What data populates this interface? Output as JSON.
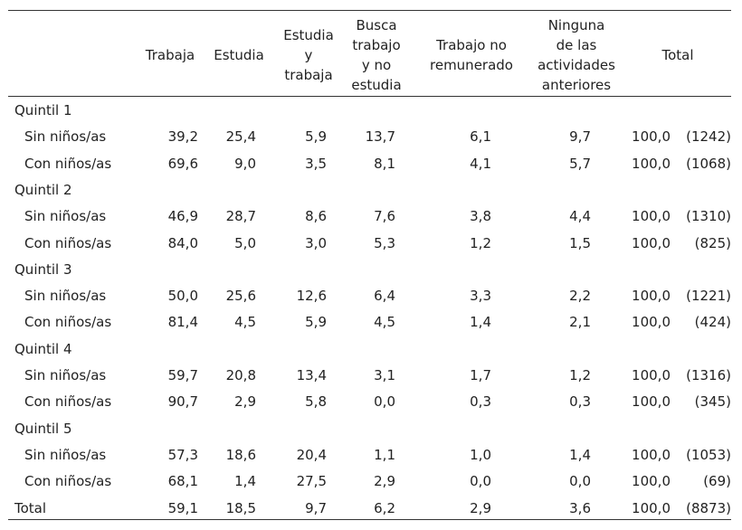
{
  "headers": [
    "Trabaja",
    "Estudia",
    "Estudia\ny\ntrabaja",
    "Busca\ntrabajo\ny no\nestudia",
    "Trabajo no\nremunerado",
    "Ninguna\nde las\nactividades\nanteriores",
    "Total"
  ],
  "groups": [
    {
      "label": "Quintil 1",
      "rows": [
        {
          "label": "Sin niños/as",
          "values": [
            "39,2",
            "25,4",
            "5,9",
            "13,7",
            "6,1",
            "9,7",
            "100,0"
          ],
          "n": "(1242)"
        },
        {
          "label": "Con niños/as",
          "values": [
            "69,6",
            "9,0",
            "3,5",
            "8,1",
            "4,1",
            "5,7",
            "100,0"
          ],
          "n": "(1068)"
        }
      ]
    },
    {
      "label": "Quintil 2",
      "rows": [
        {
          "label": "Sin niños/as",
          "values": [
            "46,9",
            "28,7",
            "8,6",
            "7,6",
            "3,8",
            "4,4",
            "100,0"
          ],
          "n": "(1310)"
        },
        {
          "label": "Con niños/as",
          "values": [
            "84,0",
            "5,0",
            "3,0",
            "5,3",
            "1,2",
            "1,5",
            "100,0"
          ],
          "n": "(825)"
        }
      ]
    },
    {
      "label": "Quintil 3",
      "rows": [
        {
          "label": "Sin niños/as",
          "values": [
            "50,0",
            "25,6",
            "12,6",
            "6,4",
            "3,3",
            "2,2",
            "100,0"
          ],
          "n": "(1221)"
        },
        {
          "label": "Con niños/as",
          "values": [
            "81,4",
            "4,5",
            "5,9",
            "4,5",
            "1,4",
            "2,1",
            "100,0"
          ],
          "n": "(424)"
        }
      ]
    },
    {
      "label": "Quintil 4",
      "rows": [
        {
          "label": "Sin niños/as",
          "values": [
            "59,7",
            "20,8",
            "13,4",
            "3,1",
            "1,7",
            "1,2",
            "100,0"
          ],
          "n": "(1316)"
        },
        {
          "label": "Con niños/as",
          "values": [
            "90,7",
            "2,9",
            "5,8",
            "0,0",
            "0,3",
            "0,3",
            "100,0"
          ],
          "n": "(345)"
        }
      ]
    },
    {
      "label": "Quintil 5",
      "rows": [
        {
          "label": "Sin niños/as",
          "values": [
            "57,3",
            "18,6",
            "20,4",
            "1,1",
            "1,0",
            "1,4",
            "100,0"
          ],
          "n": "(1053)"
        },
        {
          "label": "Con niños/as",
          "values": [
            "68,1",
            "1,4",
            "27,5",
            "2,9",
            "0,0",
            "0,0",
            "100,0"
          ],
          "n": "(69)"
        }
      ]
    }
  ],
  "total": {
    "label": "Total",
    "values": [
      "59,1",
      "18,5",
      "9,7",
      "6,2",
      "2,9",
      "3,6",
      "100,0"
    ],
    "n": "(8873)"
  }
}
